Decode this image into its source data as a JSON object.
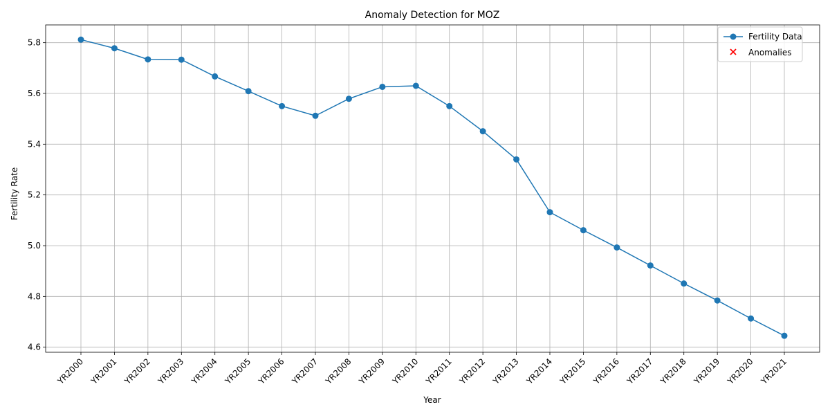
{
  "chart_data": {
    "type": "line",
    "title": "Anomaly Detection for MOZ",
    "xlabel": "Year",
    "ylabel": "Fertility Rate",
    "categories": [
      "YR2000",
      "YR2001",
      "YR2002",
      "YR2003",
      "YR2004",
      "YR2005",
      "YR2006",
      "YR2007",
      "YR2008",
      "YR2009",
      "YR2010",
      "YR2011",
      "YR2012",
      "YR2013",
      "YR2014",
      "YR2015",
      "YR2016",
      "YR2017",
      "YR2018",
      "YR2019",
      "YR2020",
      "YR2021"
    ],
    "series": [
      {
        "name": "Fertility Data",
        "color": "#1f77b4",
        "marker": "circle",
        "values": [
          5.812,
          5.778,
          5.734,
          5.733,
          5.667,
          5.609,
          5.55,
          5.512,
          5.579,
          5.626,
          5.63,
          5.55,
          5.451,
          5.34,
          5.132,
          5.061,
          4.993,
          4.922,
          4.851,
          4.784,
          4.713,
          4.645
        ]
      },
      {
        "name": "Anomalies",
        "color": "#ff0000",
        "marker": "x",
        "points": []
      }
    ],
    "ylim": [
      4.58,
      5.87
    ],
    "yticks": [
      4.6,
      4.8,
      5.0,
      5.2,
      5.4,
      5.6,
      5.8
    ],
    "grid": true,
    "legend": "top-right"
  }
}
